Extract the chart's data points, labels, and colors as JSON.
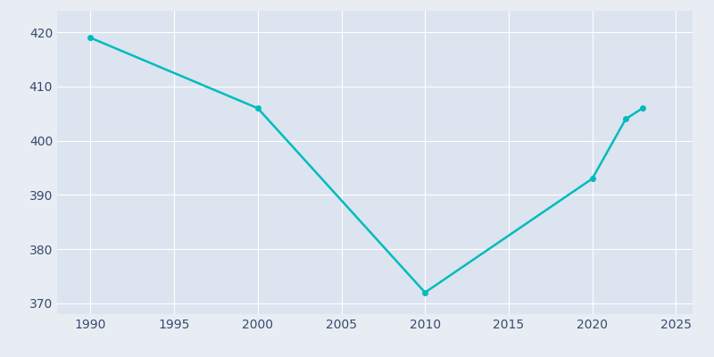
{
  "years": [
    1990,
    2000,
    2010,
    2020,
    2022,
    2023
  ],
  "population": [
    419,
    406,
    372,
    393,
    404,
    406
  ],
  "line_color": "#00BCBD",
  "marker_color": "#00BCBD",
  "bg_color": "#E8EDF4",
  "plot_bg_color": "#DCE4EF",
  "grid_color": "#FFFFFF",
  "tick_color": "#3A4A6B",
  "xlim": [
    1988,
    2026
  ],
  "ylim": [
    368,
    424
  ],
  "yticks": [
    370,
    380,
    390,
    400,
    410,
    420
  ],
  "xticks": [
    1990,
    1995,
    2000,
    2005,
    2010,
    2015,
    2020,
    2025
  ],
  "linewidth": 1.8,
  "marker_size": 4
}
